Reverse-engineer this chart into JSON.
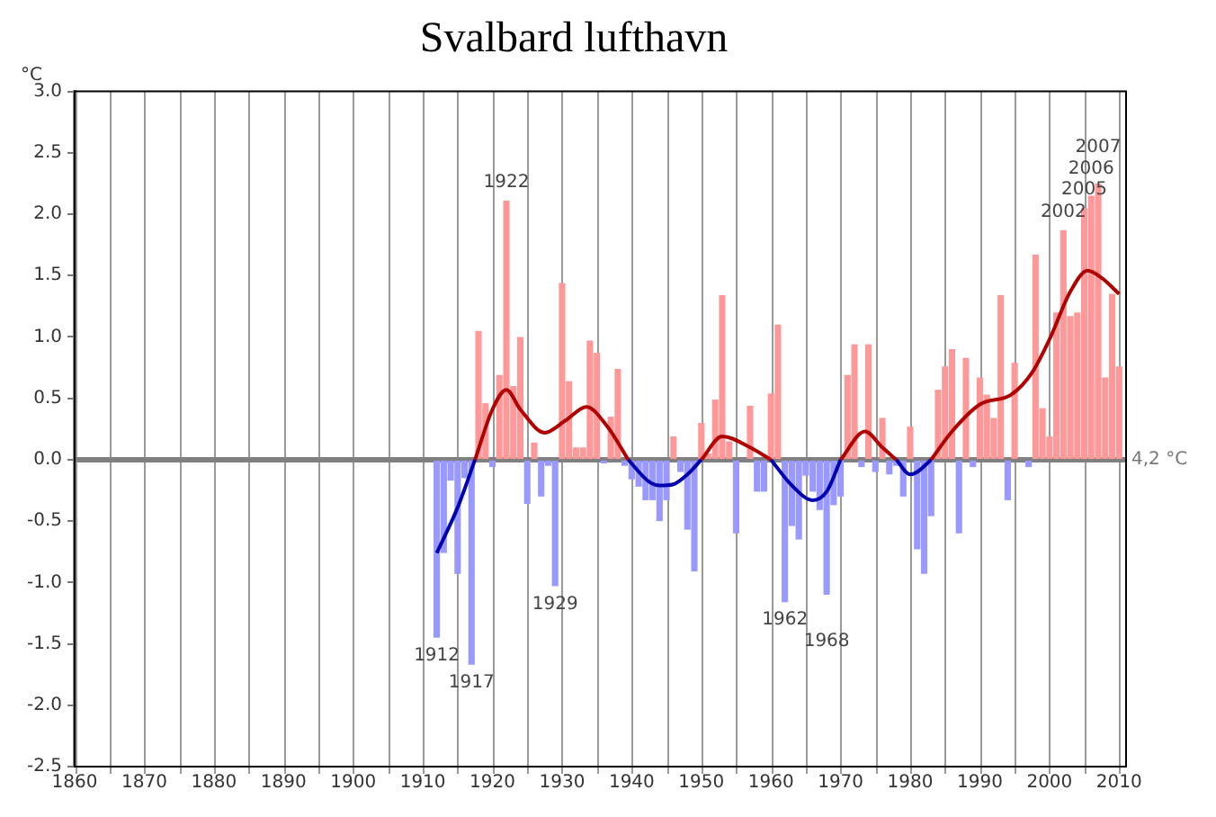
{
  "chart_data": {
    "type": "bar",
    "title": "Svalbard lufthavn",
    "ylabel": "°C",
    "xlim": [
      1860,
      2011
    ],
    "xticks": [
      1860,
      {
        "value": 1865,
        "label": null
      },
      1870,
      {
        "value": 1875,
        "label": null
      },
      1880,
      {
        "value": 1885,
        "label": null
      },
      1890,
      {
        "value": 1895,
        "label": null
      },
      1900,
      {
        "value": 1905,
        "label": null
      },
      1910,
      {
        "value": 1915,
        "label": null
      },
      1920,
      {
        "value": 1925,
        "label": null
      },
      1930,
      {
        "value": 1935,
        "label": null
      },
      1940,
      {
        "value": 1945,
        "label": null
      },
      1950,
      {
        "value": 1955,
        "label": null
      },
      1960,
      {
        "value": 1965,
        "label": null
      },
      1970,
      {
        "value": 1975,
        "label": null
      },
      1980,
      {
        "value": 1985,
        "label": null
      },
      1990,
      {
        "value": 1995,
        "label": null
      },
      2000,
      {
        "value": 2005,
        "label": null
      },
      2010
    ],
    "ylim": [
      -2.5,
      3
    ],
    "yticks": [
      {
        "value": 3,
        "label": "3.0"
      },
      {
        "value": 2.5,
        "label": "2.5"
      },
      {
        "value": 2,
        "label": "2.0"
      },
      {
        "value": 1.5,
        "label": "1.5"
      },
      {
        "value": 1,
        "label": "1.0"
      },
      {
        "value": 0.5,
        "label": "0.5"
      },
      {
        "value": 0,
        "label": "0.0"
      },
      {
        "value": -0.5,
        "label": "-0.5"
      },
      {
        "value": -1,
        "label": "-1.0"
      },
      {
        "value": -1.5,
        "label": "-1.5"
      },
      {
        "value": -2,
        "label": "-2.0"
      },
      {
        "value": -2.5,
        "label": "-2.5"
      }
    ],
    "grid": "x",
    "ref_lines": [
      {
        "axis": "y",
        "value": 0,
        "label": "4,2 °C",
        "color": "#808080"
      }
    ],
    "series": [
      {
        "x": [
          1912,
          1913,
          1914,
          1915,
          1916,
          1917,
          1918,
          1919,
          1920,
          1921,
          1922,
          1923,
          1924,
          1925,
          1926,
          1927,
          1928,
          1929,
          1930,
          1931,
          1932,
          1933,
          1934,
          1935,
          1936,
          1937,
          1938,
          1939,
          1940,
          1941,
          1942,
          1943,
          1944,
          1945,
          1946,
          1947,
          1948,
          1949,
          1950,
          1951,
          1952,
          1953,
          1954,
          1955,
          1956,
          1957,
          1958,
          1959,
          1960,
          1961,
          1962,
          1963,
          1964,
          1965,
          1966,
          1967,
          1968,
          1969,
          1970,
          1971,
          1972,
          1973,
          1974,
          1975,
          1976,
          1977,
          1978,
          1979,
          1980,
          1981,
          1982,
          1983,
          1984,
          1985,
          1986,
          1987,
          1988,
          1989,
          1990,
          1991,
          1992,
          1993,
          1994,
          1995,
          1996,
          1997,
          1998,
          1999,
          2000,
          2001,
          2002,
          2003,
          2004,
          2005,
          2006,
          2007,
          2008,
          2009,
          2010
        ],
        "values": [
          -1.45,
          -0.76,
          -0.17,
          -0.93,
          -0.15,
          -1.67,
          1.05,
          0.46,
          -0.06,
          0.69,
          2.11,
          0.6,
          1.0,
          -0.36,
          0.14,
          -0.3,
          -0.05,
          -1.03,
          1.44,
          0.64,
          0.1,
          0.1,
          0.97,
          0.87,
          -0.03,
          0.35,
          0.74,
          -0.05,
          -0.16,
          -0.22,
          -0.33,
          -0.33,
          -0.5,
          -0.33,
          0.19,
          -0.1,
          -0.57,
          -0.91,
          0.3,
          0.05,
          0.49,
          1.34,
          0.15,
          -0.6,
          0,
          0.44,
          -0.26,
          -0.26,
          0.54,
          1.1,
          -1.16,
          -0.54,
          -0.65,
          -0.13,
          -0.26,
          -0.41,
          -1.1,
          -0.37,
          -0.3,
          0.69,
          0.94,
          -0.06,
          0.94,
          -0.1,
          0.34,
          -0.12,
          -0.05,
          -0.3,
          0.27,
          -0.73,
          -0.93,
          -0.46,
          0.57,
          0.76,
          0.9,
          -0.6,
          0.83,
          -0.06,
          0.67,
          0.53,
          0.34,
          1.34,
          -0.33,
          0.79,
          0,
          -0.06,
          1.67,
          0.42,
          0.19,
          1.2,
          1.87,
          1.17,
          1.2,
          2.05,
          2.15,
          2.25,
          0.67,
          1.35,
          0.76
        ],
        "colors": [
          "#9999ff",
          "#9999ff",
          "#9999ff",
          "#9999ff",
          "#9999ff",
          "#9999ff",
          "#ff9999",
          "#ff9999",
          "#9999ff",
          "#ff9999",
          "#ff9999",
          "#ff9999",
          "#ff9999",
          "#9999ff",
          "#ff9999",
          "#9999ff",
          "#9999ff",
          "#9999ff",
          "#ff9999",
          "#ff9999",
          "#ff9999",
          "#ff9999",
          "#ff9999",
          "#ff9999",
          "#9999ff",
          "#ff9999",
          "#ff9999",
          "#9999ff",
          "#9999ff",
          "#9999ff",
          "#9999ff",
          "#9999ff",
          "#9999ff",
          "#9999ff",
          "#ff9999",
          "#9999ff",
          "#9999ff",
          "#9999ff",
          "#ff9999",
          "#ff9999",
          "#ff9999",
          "#ff9999",
          "#ff9999",
          "#9999ff",
          "#ff9999",
          "#ff9999",
          "#9999ff",
          "#9999ff",
          "#ff9999",
          "#ff9999",
          "#9999ff",
          "#9999ff",
          "#9999ff",
          "#9999ff",
          "#9999ff",
          "#9999ff",
          "#9999ff",
          "#9999ff",
          "#9999ff",
          "#ff9999",
          "#ff9999",
          "#9999ff",
          "#ff9999",
          "#9999ff",
          "#ff9999",
          "#9999ff",
          "#9999ff",
          "#9999ff",
          "#ff9999",
          "#9999ff",
          "#9999ff",
          "#9999ff",
          "#ff9999",
          "#ff9999",
          "#ff9999",
          "#9999ff",
          "#ff9999",
          "#9999ff",
          "#ff9999",
          "#ff9999",
          "#ff9999",
          "#ff9999",
          "#9999ff",
          "#ff9999",
          "#ff9999",
          "#9999ff",
          "#ff9999",
          "#ff9999",
          "#ff9999",
          "#ff9999",
          "#ff9999",
          "#ff9999",
          "#ff9999",
          "#ff9999",
          "#ff9999",
          "#ff9999",
          "#ff9999",
          "#ff9999",
          "#ff9999"
        ]
      },
      {
        "type": "line",
        "color": "#b00000",
        "x": [
          1917.5,
          1920,
          1922,
          1924,
          1927.5,
          1930.5,
          1933.5,
          1936.5,
          1939.5,
          1945,
          1950,
          1953,
          1957,
          1960,
          1965,
          1970,
          1973.5,
          1976,
          1978,
          1980,
          1983,
          1986,
          1990,
          1994.5,
          1997.5,
          2000,
          2003,
          2005.5,
          2007.5,
          2010
        ],
        "values": [
          0,
          0.41,
          0.57,
          0.41,
          0.22,
          0.32,
          0.43,
          0.27,
          0,
          null,
          0,
          0.19,
          0.1,
          0,
          null,
          0,
          0.23,
          0.1,
          0,
          null,
          0,
          0.23,
          0.45,
          0.53,
          0.71,
          0.98,
          1.37,
          1.54,
          1.48,
          1.35
        ]
      },
      {
        "type": "line",
        "color": "#0000b0",
        "x": [
          1912,
          1915,
          1917.5,
          1930,
          1939.5,
          1942.5,
          1944,
          1946,
          1948,
          1950,
          1955,
          1960,
          1963,
          1966,
          1968,
          1970,
          1975,
          1978,
          1980,
          1981,
          1983
        ],
        "values": [
          -0.76,
          -0.39,
          0,
          null,
          0,
          -0.18,
          -0.21,
          -0.2,
          -0.12,
          0,
          null,
          0,
          -0.21,
          -0.33,
          -0.26,
          0,
          null,
          0,
          -0.12,
          -0.1,
          0
        ]
      }
    ],
    "marker": "none",
    "annotations": [
      {
        "text": "1912",
        "x": 1912,
        "y": -1.45
      },
      {
        "text": "1917",
        "x": 1917,
        "y": -1.67
      },
      {
        "text": "1922",
        "x": 1922,
        "y": 2.11
      },
      {
        "text": "1929",
        "x": 1929,
        "y": -1.03
      },
      {
        "text": "1962",
        "x": 1962,
        "y": -1.16
      },
      {
        "text": "1968",
        "x": 1968,
        "y": -1.1
      },
      {
        "text": "2002",
        "x": 2002,
        "y": 1.87
      },
      {
        "text": "2005",
        "x": 2005,
        "y": 2.05
      },
      {
        "text": "2006",
        "x": 2006,
        "y": 2.15
      },
      {
        "text": "2007",
        "x": 2007,
        "y": 2.25
      }
    ]
  }
}
